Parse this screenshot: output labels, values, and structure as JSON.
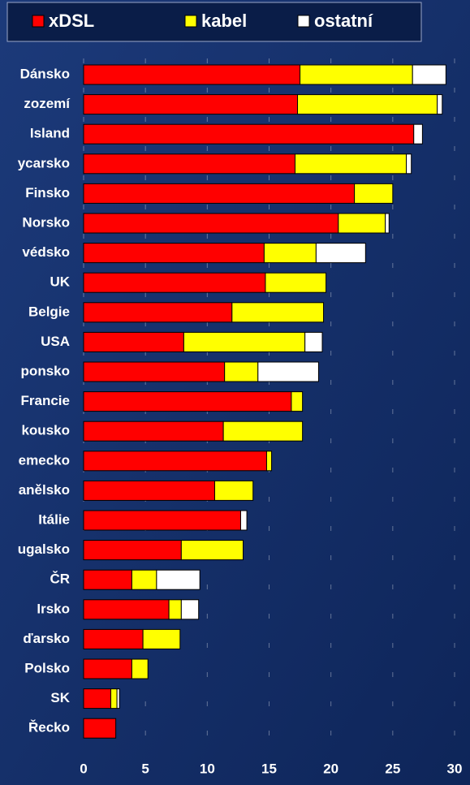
{
  "chart_data": {
    "type": "stacked-barh",
    "categories": [
      "Dánsko",
      "zozemí",
      "Island",
      "ycarsko",
      "Finsko",
      "Norsko",
      "védsko",
      "UK",
      "Belgie",
      "USA",
      "ponsko",
      "Francie",
      "kousko",
      "emecko",
      "anělsko",
      "Itálie",
      "ugalsko",
      "ČR",
      "Irsko",
      "ďarsko",
      "Polsko",
      "SK",
      "Řecko"
    ],
    "series": [
      {
        "name": "xDSL",
        "color": "#ff0000",
        "values": [
          17.5,
          17.3,
          26.7,
          17.1,
          21.9,
          20.6,
          14.6,
          14.7,
          12.0,
          8.1,
          11.4,
          16.8,
          11.3,
          14.8,
          10.6,
          12.7,
          7.9,
          3.9,
          6.9,
          4.8,
          3.9,
          2.2,
          2.6
        ]
      },
      {
        "name": "kabel",
        "color": "#ffff00",
        "values": [
          9.1,
          11.3,
          0,
          9.0,
          3.1,
          3.8,
          4.2,
          4.9,
          7.4,
          9.8,
          2.7,
          0.9,
          6.4,
          0.4,
          3.1,
          0,
          5.0,
          2.0,
          1.0,
          3.0,
          1.3,
          0.5,
          0
        ]
      },
      {
        "name": "ostatní",
        "color": "#ffffff",
        "values": [
          2.7,
          0.4,
          0.7,
          0.4,
          0,
          0.3,
          4.0,
          0,
          0,
          1.4,
          4.9,
          0,
          0,
          0,
          0,
          0.5,
          0,
          3.5,
          1.4,
          0,
          0,
          0.2,
          0
        ]
      }
    ],
    "xlim": [
      0,
      30
    ],
    "xticks": [
      0,
      5,
      10,
      15,
      20,
      25,
      30
    ],
    "grid": true
  }
}
